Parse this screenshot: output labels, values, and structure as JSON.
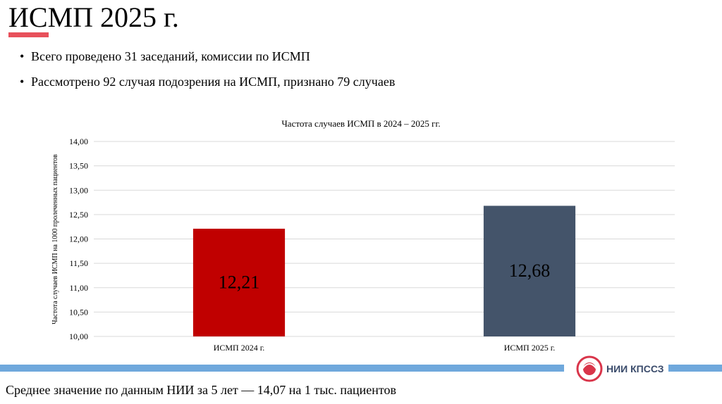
{
  "title": "ИСМП 2025 г.",
  "bullets": [
    "Всего проведено 31 заседаний, комиссии по ИСМП",
    "Рассмотрено 92 случая подозрения на ИСМП, признано 79 случаев"
  ],
  "chart_data": {
    "type": "bar",
    "title": "Частота случаев ИСМП в 2024 – 2025 гг.",
    "y_label": "Частота случаев ИСМП на 1000 пролеченных пациентов",
    "categories": [
      "ИСМП 2024 г.",
      "ИСМП 2025 г."
    ],
    "values": [
      12.21,
      12.68
    ],
    "value_labels": [
      "12,21",
      "12,68"
    ],
    "colors": [
      "#c00000",
      "#44546a"
    ],
    "ylim": [
      10,
      14
    ],
    "yticks": [
      {
        "value": 10,
        "label": "10,00"
      },
      {
        "value": 10.5,
        "label": "10,50"
      },
      {
        "value": 11,
        "label": "11,00"
      },
      {
        "value": 11.5,
        "label": "11,50"
      },
      {
        "value": 12,
        "label": "12,00"
      },
      {
        "value": 12.5,
        "label": "12,50"
      },
      {
        "value": 13,
        "label": "13,00"
      },
      {
        "value": 13.5,
        "label": "13,50"
      },
      {
        "value": 14,
        "label": "14,00"
      }
    ],
    "grid": true
  },
  "logo": "НИИ КПССЗ",
  "footer": "Среднее значение по данным НИИ за 5 лет — 14,07 на 1 тыс. пациентов"
}
